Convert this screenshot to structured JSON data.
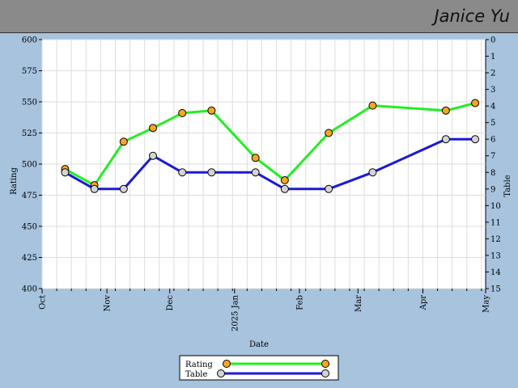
{
  "header": {
    "player_name": "Janice Yu"
  },
  "chart_data": {
    "type": "line",
    "xlabel": "Date",
    "ylabel_left": "Rating",
    "ylabel_right": "Table",
    "x_ticks": [
      {
        "date": "2024-10-01",
        "label": "Oct"
      },
      {
        "date": "2024-11-01",
        "label": "Nov"
      },
      {
        "date": "2024-12-01",
        "label": "Dec"
      },
      {
        "date": "2025-01-01",
        "label": "2025 Jan"
      },
      {
        "date": "2025-02-01",
        "label": "Feb"
      },
      {
        "date": "2025-03-01",
        "label": "Mar"
      },
      {
        "date": "2025-04-01",
        "label": "Apr"
      },
      {
        "date": "2025-05-01",
        "label": "May"
      }
    ],
    "xlim": [
      "2024-10-01",
      "2025-05-01"
    ],
    "ylim_left": [
      400,
      600
    ],
    "ylim_right": [
      15,
      0
    ],
    "y_ticks_left": [
      400,
      425,
      450,
      475,
      500,
      525,
      550,
      575,
      600
    ],
    "y_ticks_right": [
      0,
      1,
      2,
      3,
      4,
      5,
      6,
      7,
      8,
      9,
      10,
      11,
      12,
      13,
      14,
      15
    ],
    "grid": true,
    "legend_position": "bottom-center",
    "series": [
      {
        "name": "Rating",
        "axis": "left",
        "color": "#22ee22",
        "marker_color": "#f5a623",
        "points": [
          {
            "x": "2024-10-12",
            "y": 496
          },
          {
            "x": "2024-10-26",
            "y": 483
          },
          {
            "x": "2024-11-09",
            "y": 518
          },
          {
            "x": "2024-11-23",
            "y": 529
          },
          {
            "x": "2024-12-07",
            "y": 541
          },
          {
            "x": "2024-12-21",
            "y": 543
          },
          {
            "x": "2025-01-11",
            "y": 505
          },
          {
            "x": "2025-01-25",
            "y": 487
          },
          {
            "x": "2025-02-15",
            "y": 525
          },
          {
            "x": "2025-03-08",
            "y": 547
          },
          {
            "x": "2025-04-12",
            "y": 543
          },
          {
            "x": "2025-04-26",
            "y": 549
          }
        ]
      },
      {
        "name": "Table",
        "axis": "right",
        "color": "#1a1ad6",
        "marker_color": "#d4d4d4",
        "points": [
          {
            "x": "2024-10-12",
            "y": 8
          },
          {
            "x": "2024-10-26",
            "y": 9
          },
          {
            "x": "2024-11-09",
            "y": 9
          },
          {
            "x": "2024-11-23",
            "y": 7
          },
          {
            "x": "2024-12-07",
            "y": 8
          },
          {
            "x": "2024-12-21",
            "y": 8
          },
          {
            "x": "2025-01-11",
            "y": 8
          },
          {
            "x": "2025-01-25",
            "y": 9
          },
          {
            "x": "2025-02-15",
            "y": 9
          },
          {
            "x": "2025-03-08",
            "y": 8
          },
          {
            "x": "2025-04-12",
            "y": 6
          },
          {
            "x": "2025-04-26",
            "y": 6
          }
        ]
      }
    ]
  }
}
